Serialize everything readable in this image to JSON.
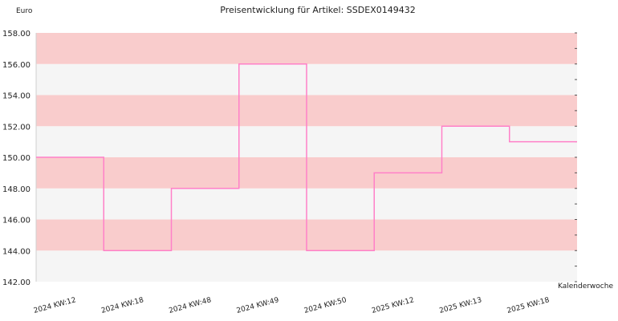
{
  "chart_data": {
    "type": "line",
    "step": true,
    "title": "Preisentwicklung für Artikel: SSDEX0149432",
    "ylabel": "Euro",
    "xlabel": "Kalenderwoche",
    "ylim": [
      142,
      158
    ],
    "y_ticks": [
      "142.00",
      "144.00",
      "146.00",
      "148.00",
      "150.00",
      "152.00",
      "154.00",
      "156.00",
      "158.00"
    ],
    "categories": [
      "2024 KW:12",
      "2024 KW:18",
      "2024 KW:48",
      "2024 KW:49",
      "2024 KW:50",
      "2025 KW:12",
      "2025 KW:13",
      "2025 KW:18"
    ],
    "series": [
      {
        "values": [
          150,
          144,
          148,
          156,
          144,
          149,
          152,
          151
        ]
      }
    ],
    "colors": {
      "line": "#ff80c8",
      "band_dark": "#f9cccc",
      "band_light": "#f5f5f5"
    },
    "grid": true,
    "legend": "none"
  }
}
